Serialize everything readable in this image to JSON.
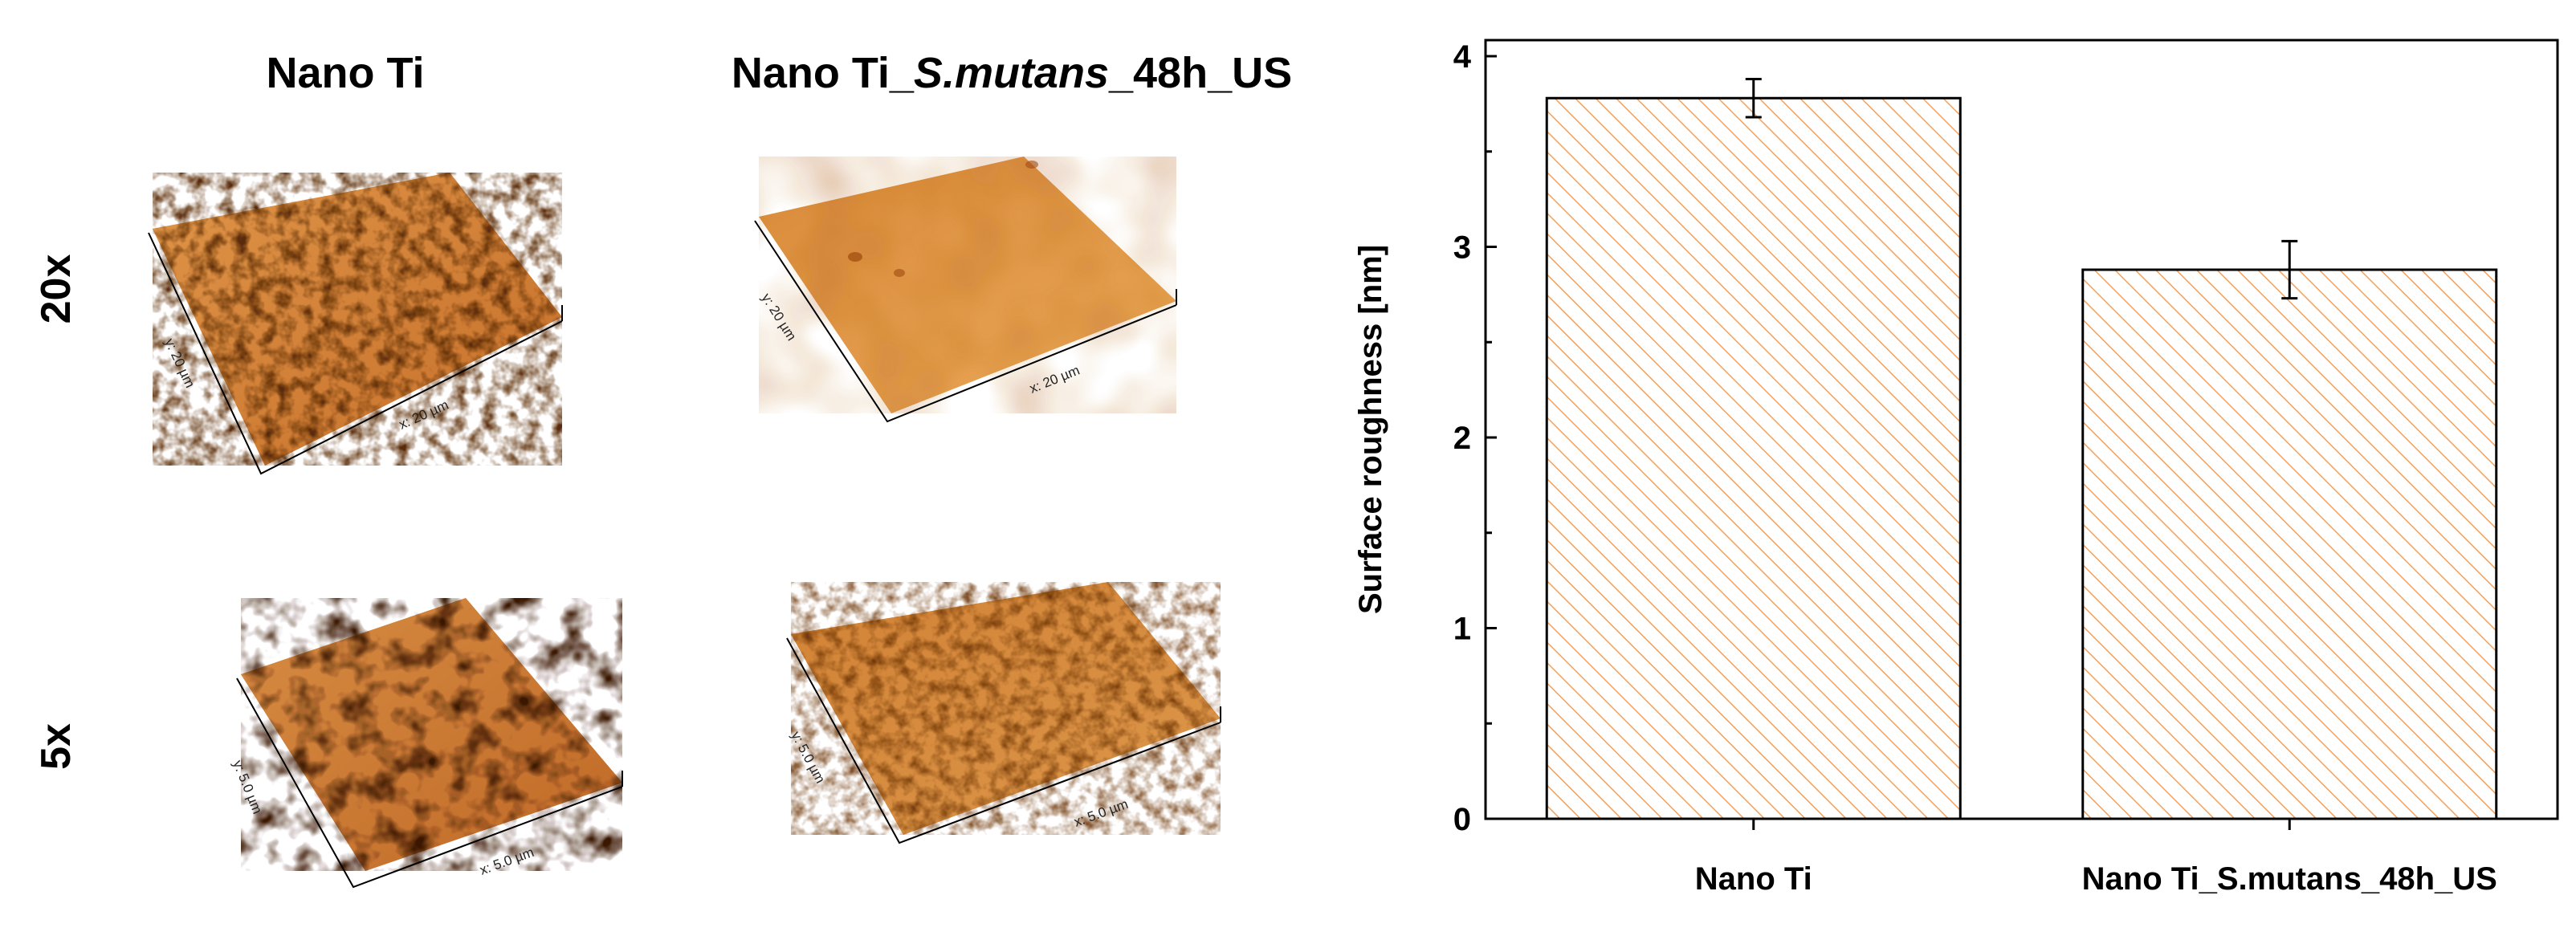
{
  "afm_panel": {
    "column_titles": {
      "col1": "Nano Ti",
      "col2_prefix": "Nano Ti_",
      "col2_italic": "S.mutans",
      "col2_suffix": "_48h_US"
    },
    "row_labels": {
      "row1": "20x",
      "row2": "5x"
    },
    "images": [
      {
        "x_label": "x: 20 µm",
        "y_label": "y: 20 µm"
      },
      {
        "x_label": "x: 20 µm",
        "y_label": "y: 20 µm"
      },
      {
        "x_label": "x: 5.0 µm",
        "y_label": "y: 5.0 µm"
      },
      {
        "x_label": "x: 5.0 µm",
        "y_label": "y: 5.0 µm"
      }
    ]
  },
  "chart_data": {
    "type": "bar",
    "categories": [
      "Nano Ti",
      "Nano Ti_S.mutans_48h_US"
    ],
    "values": [
      3.78,
      2.88
    ],
    "errors": [
      0.1,
      0.15
    ],
    "ylabel": "Surface roughness [nm]",
    "xlabel": "",
    "ylim": [
      0,
      4
    ],
    "yticks": [
      0,
      1,
      2,
      3,
      4
    ],
    "bar_color": "#f5a05a",
    "bar_fill": "hatched",
    "grid": false
  }
}
